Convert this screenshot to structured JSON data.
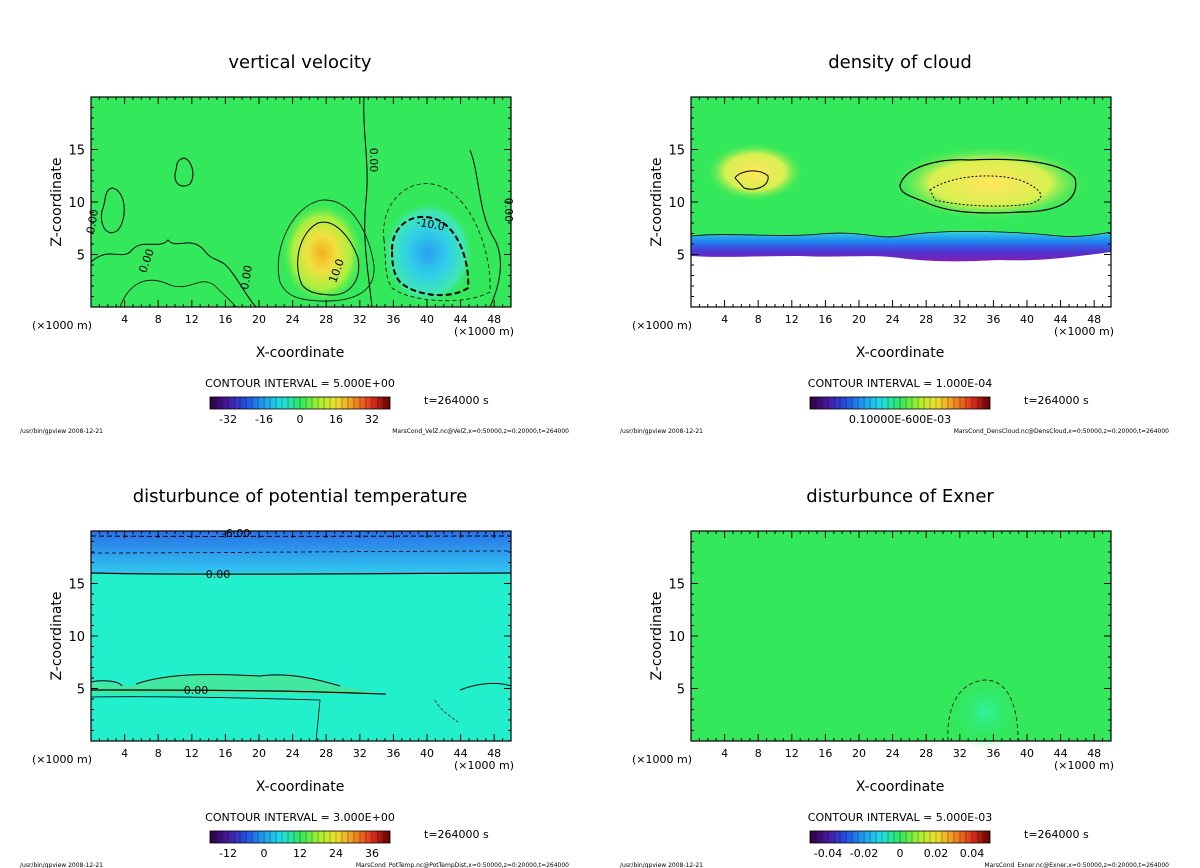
{
  "panels": [
    {
      "title": "vertical velocity",
      "xlabel": "X-coordinate",
      "ylabel": "Z-coordinate",
      "x_unit": "(×1000 m)",
      "x_unit_right": "(×1000 m)",
      "xticks": [
        "4",
        "8",
        "12",
        "16",
        "20",
        "24",
        "28",
        "32",
        "36",
        "40",
        "44",
        "48"
      ],
      "yticks": [
        "5",
        "10",
        "15"
      ],
      "contour_interval": "CONTOUR INTERVAL = 5.000E+00",
      "time_label": "t=264000 s",
      "colorbar_ticks": [
        "-32",
        "-16",
        "0",
        "16",
        "32"
      ],
      "contour_labels": [
        "0.00",
        "0.00",
        "0.00",
        "0.00",
        "0.00",
        "10.0",
        "-10.0"
      ],
      "footer_left": "/usr/bin/gpview  2008-12-21",
      "footer_right": "MarsCond_VelZ.nc@VelZ,x=0:50000,z=0:20000,t=264000"
    },
    {
      "title": "density of cloud",
      "xlabel": "X-coordinate",
      "ylabel": "Z-coordinate",
      "x_unit": "(×1000 m)",
      "x_unit_right": "(×1000 m)",
      "xticks": [
        "4",
        "8",
        "12",
        "16",
        "20",
        "24",
        "28",
        "32",
        "36",
        "40",
        "44",
        "48"
      ],
      "yticks": [
        "5",
        "10",
        "15"
      ],
      "contour_interval": "CONTOUR INTERVAL = 1.000E-04",
      "time_label": "t=264000 s",
      "colorbar_ticks": [
        "0.10000E-600E-03"
      ],
      "contour_labels": [],
      "footer_left": "/usr/bin/gpview  2008-12-21",
      "footer_right": "MarsCond_DensCloud.nc@DensCloud,x=0:50000,z=0:20000,t=264000"
    },
    {
      "title": "disturbunce of potential temperature",
      "xlabel": "X-coordinate",
      "ylabel": "Z-coordinate",
      "x_unit": "(×1000 m)",
      "x_unit_right": "(×1000 m)",
      "xticks": [
        "4",
        "8",
        "12",
        "16",
        "20",
        "24",
        "28",
        "32",
        "36",
        "40",
        "44",
        "48"
      ],
      "yticks": [
        "5",
        "10",
        "15"
      ],
      "contour_interval": "CONTOUR INTERVAL = 3.000E+00",
      "time_label": "t=264000 s",
      "colorbar_ticks": [
        "-12",
        "0",
        "12",
        "24",
        "36"
      ],
      "contour_labels": [
        "-6.00",
        "0.00",
        "0.00"
      ],
      "footer_left": "/usr/bin/gpview  2008-12-21",
      "footer_right": "MarsCond_PotTemp.nc@PotTempDist,x=0:50000,z=0:20000,t=264000"
    },
    {
      "title": "disturbunce of Exner",
      "xlabel": "X-coordinate",
      "ylabel": "Z-coordinate",
      "x_unit": "(×1000 m)",
      "x_unit_right": "(×1000 m)",
      "xticks": [
        "4",
        "8",
        "12",
        "16",
        "20",
        "24",
        "28",
        "32",
        "36",
        "40",
        "44",
        "48"
      ],
      "yticks": [
        "5",
        "10",
        "15"
      ],
      "contour_interval": "CONTOUR INTERVAL = 5.000E-03",
      "time_label": "t=264000 s",
      "colorbar_ticks": [
        "-0.04",
        "-0.02",
        "0",
        "0.02",
        "0.04"
      ],
      "contour_labels": [],
      "footer_left": "/usr/bin/gpview  2008-12-21",
      "footer_right": "MarsCond_Exner.nc@Exner,x=0:50000,z=0:20000,t=264000"
    }
  ],
  "chart_data": [
    {
      "type": "heatmap",
      "title": "vertical velocity",
      "xlabel": "X-coordinate",
      "ylabel": "Z-coordinate",
      "xlim": [
        0,
        50000
      ],
      "ylim": [
        0,
        20000
      ],
      "xtick_values": [
        4,
        8,
        12,
        16,
        20,
        24,
        28,
        32,
        36,
        40,
        44,
        48
      ],
      "ytick_values": [
        5,
        10,
        15
      ],
      "contour_interval": 5.0,
      "colorbar_range": [
        -40,
        40
      ],
      "colorbar_tick_values": [
        -32,
        -16,
        0,
        16,
        32
      ],
      "features": [
        {
          "kind": "updraft",
          "peak_label": "10.0",
          "x_center_km": 27.5,
          "z_center_km": 5.5
        },
        {
          "kind": "downdraft",
          "peak_label": "-10.0",
          "x_center_km": 40.5,
          "z_center_km": 5.5
        }
      ]
    },
    {
      "type": "heatmap",
      "title": "density of cloud",
      "xlabel": "X-coordinate",
      "ylabel": "Z-coordinate",
      "xlim": [
        0,
        50000
      ],
      "ylim": [
        0,
        20000
      ],
      "xtick_values": [
        4,
        8,
        12,
        16,
        20,
        24,
        28,
        32,
        36,
        40,
        44,
        48
      ],
      "ytick_values": [
        5,
        10,
        15
      ],
      "contour_interval": 0.0001,
      "cloud_layer_km": [
        5,
        17
      ],
      "max_density_region_km": {
        "x": [
          26,
          44
        ],
        "z": [
          10,
          14
        ]
      }
    },
    {
      "type": "heatmap",
      "title": "disturbunce of potential temperature",
      "xlabel": "X-coordinate",
      "ylabel": "Z-coordinate",
      "xlim": [
        0,
        50000
      ],
      "ylim": [
        0,
        20000
      ],
      "xtick_values": [
        4,
        8,
        12,
        16,
        20,
        24,
        28,
        32,
        36,
        40,
        44,
        48
      ],
      "ytick_values": [
        5,
        10,
        15
      ],
      "contour_interval": 3.0,
      "colorbar_range": [
        -18,
        42
      ],
      "colorbar_tick_values": [
        -12,
        0,
        12,
        24,
        36
      ],
      "contours": [
        {
          "label": "-6.00",
          "z_km": 19.7
        },
        {
          "label": "0.00",
          "z_km": 15.9
        },
        {
          "label": "0.00",
          "z_km": 4.8
        }
      ]
    },
    {
      "type": "heatmap",
      "title": "disturbunce of Exner",
      "xlabel": "X-coordinate",
      "ylabel": "Z-coordinate",
      "xlim": [
        0,
        50000
      ],
      "ylim": [
        0,
        20000
      ],
      "xtick_values": [
        4,
        8,
        12,
        16,
        20,
        24,
        28,
        32,
        36,
        40,
        44,
        48
      ],
      "ytick_values": [
        5,
        10,
        15
      ],
      "contour_interval": 0.005,
      "colorbar_range": [
        -0.05,
        0.05
      ],
      "colorbar_tick_values": [
        -0.04,
        -0.02,
        0,
        0.02,
        0.04
      ]
    }
  ],
  "colors": {
    "green_field": "#33e85a",
    "cyan_field": "#22f0cc",
    "yellow": "#ffe65c",
    "blue": "#2aa0f0",
    "purple": "#8020b0"
  }
}
